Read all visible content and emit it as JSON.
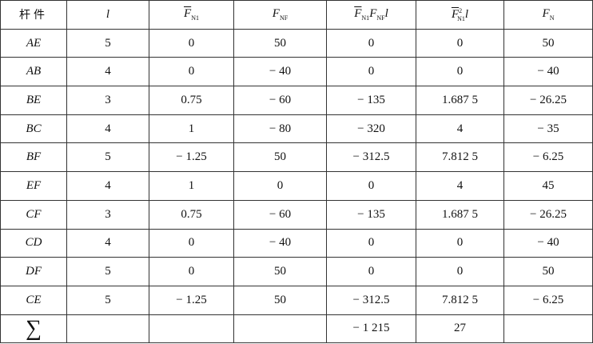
{
  "table": {
    "header": [
      [
        "杆件"
      ],
      [
        "l"
      ],
      [
        "F",
        "N1"
      ],
      [
        "F",
        "NF"
      ],
      [
        "F",
        "N1",
        "F",
        "NF",
        "l"
      ],
      [
        "F",
        "2",
        "N1",
        "l"
      ],
      [
        "F",
        "N"
      ]
    ],
    "rows": [
      [
        "AE",
        "5",
        "0",
        "50",
        "0",
        "0",
        "50"
      ],
      [
        "AB",
        "4",
        "0",
        "− 40",
        "0",
        "0",
        "− 40"
      ],
      [
        "BE",
        "3",
        "0.75",
        "− 60",
        "− 135",
        "1.687 5",
        "− 26.25"
      ],
      [
        "BC",
        "4",
        "1",
        "− 80",
        "− 320",
        "4",
        "− 35"
      ],
      [
        "BF",
        "5",
        "− 1.25",
        "50",
        "− 312.5",
        "7.812 5",
        "− 6.25"
      ],
      [
        "EF",
        "4",
        "1",
        "0",
        "0",
        "4",
        "45"
      ],
      [
        "CF",
        "3",
        "0.75",
        "− 60",
        "− 135",
        "1.687 5",
        "− 26.25"
      ],
      [
        "CD",
        "4",
        "0",
        "− 40",
        "0",
        "0",
        "− 40"
      ],
      [
        "DF",
        "5",
        "0",
        "50",
        "0",
        "0",
        "50"
      ],
      [
        "CE",
        "5",
        "− 1.25",
        "50",
        "− 312.5",
        "7.812 5",
        "− 6.25"
      ]
    ],
    "sum": {
      "label": "∑",
      "values": {
        "4": "− 1 215",
        "5": "27"
      }
    }
  }
}
